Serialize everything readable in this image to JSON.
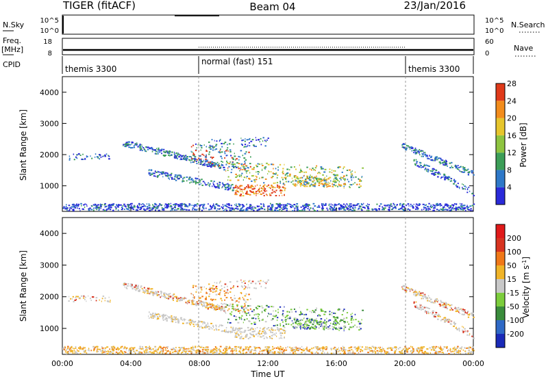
{
  "header": {
    "radar": "TIGER (fitACF)",
    "beam": "Beam 04",
    "date": "23/Jan/2016"
  },
  "panels": {
    "nsky": {
      "label": "N.Sky",
      "ticks": [
        "10^5",
        "10^0"
      ],
      "right_label": "N.Search"
    },
    "freq": {
      "label_line1": "Freq.",
      "label_line2": "[MHz]",
      "ticks": [
        "18",
        "8"
      ],
      "right_ticks": [
        "60",
        "0"
      ],
      "right_label": "Nave"
    },
    "cpid": {
      "label": "CPID",
      "segments": [
        {
          "text": "themis 3300",
          "start_h": 0.0
        },
        {
          "text": "normal (fast) 151",
          "start_h": 8.0
        },
        {
          "text": "themis 3300",
          "start_h": 20.0
        }
      ]
    }
  },
  "chart_data": [
    {
      "type": "heatmap",
      "title": "",
      "ylabel": "Slant Range [km]",
      "xlabel": "",
      "ylim": [
        180,
        4500
      ],
      "yticks": [
        "1000",
        "2000",
        "3000",
        "4000"
      ],
      "xlim": [
        0,
        24
      ],
      "colorbar": {
        "label": "Power [dB]",
        "ticks": [
          "4",
          "8",
          "12",
          "16",
          "20",
          "24",
          "28"
        ],
        "colors": [
          "#2a2ad9",
          "#2e78c8",
          "#3c9e58",
          "#8ec440",
          "#e6c52c",
          "#f28c1c",
          "#e03a1a"
        ]
      }
    },
    {
      "type": "heatmap",
      "title": "",
      "ylabel": "Slant Range [km]",
      "xlabel": "Time UT",
      "ylim": [
        180,
        4500
      ],
      "yticks": [
        "1000",
        "2000",
        "3000",
        "4000"
      ],
      "xlim": [
        0,
        24
      ],
      "xticks": [
        "00:00",
        "04:00",
        "08:00",
        "12:00",
        "16:00",
        "20:00",
        "00:00"
      ],
      "colorbar": {
        "label_main": "Velocity [m s",
        "label_sup": "-1",
        "label_end": "]",
        "ticks": [
          "200",
          "100",
          "50",
          "15",
          "-15",
          "-50",
          "-100",
          "-200"
        ],
        "colors": [
          "#1a2ab8",
          "#2f69c6",
          "#3a8c3c",
          "#7ccd3c",
          "#c8c8c8",
          "#f0b428",
          "#f07818",
          "#d83420",
          "#e01a1a"
        ]
      }
    }
  ]
}
